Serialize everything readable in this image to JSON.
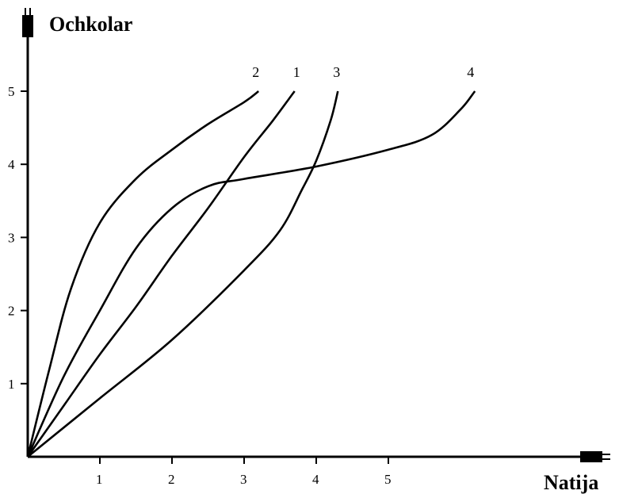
{
  "chart_data": {
    "type": "line",
    "xlabel": "Natija",
    "ylabel": "Ochkolar",
    "xlim": [
      0,
      8
    ],
    "ylim": [
      0,
      5.8
    ],
    "x_ticks": [
      "1",
      "2",
      "3",
      "4",
      "5"
    ],
    "y_ticks": [
      "1",
      "2",
      "3",
      "4",
      "5"
    ],
    "grid": false,
    "series": [
      {
        "name": "1",
        "points": [
          [
            0,
            0
          ],
          [
            0.5,
            0.7
          ],
          [
            1,
            1.4
          ],
          [
            1.5,
            2.05
          ],
          [
            2,
            2.75
          ],
          [
            2.5,
            3.4
          ],
          [
            3,
            4.1
          ],
          [
            3.4,
            4.6
          ],
          [
            3.7,
            5.0
          ]
        ]
      },
      {
        "name": "2",
        "points": [
          [
            0,
            0
          ],
          [
            0.3,
            1.2
          ],
          [
            0.6,
            2.3
          ],
          [
            1,
            3.2
          ],
          [
            1.5,
            3.8
          ],
          [
            2,
            4.2
          ],
          [
            2.5,
            4.55
          ],
          [
            3,
            4.85
          ],
          [
            3.2,
            5.0
          ]
        ]
      },
      {
        "name": "3",
        "points": [
          [
            0,
            0
          ],
          [
            1,
            0.8
          ],
          [
            2,
            1.6
          ],
          [
            3,
            2.55
          ],
          [
            3.5,
            3.1
          ],
          [
            3.8,
            3.65
          ],
          [
            4,
            4.05
          ],
          [
            4.2,
            4.6
          ],
          [
            4.3,
            5.0
          ]
        ]
      },
      {
        "name": "4",
        "points": [
          [
            0,
            0
          ],
          [
            0.5,
            1.1
          ],
          [
            1,
            2.0
          ],
          [
            1.5,
            2.85
          ],
          [
            2,
            3.4
          ],
          [
            2.5,
            3.7
          ],
          [
            3,
            3.8
          ],
          [
            4,
            3.97
          ],
          [
            5,
            4.2
          ],
          [
            5.6,
            4.4
          ],
          [
            6,
            4.75
          ],
          [
            6.2,
            5.0
          ]
        ]
      }
    ]
  }
}
